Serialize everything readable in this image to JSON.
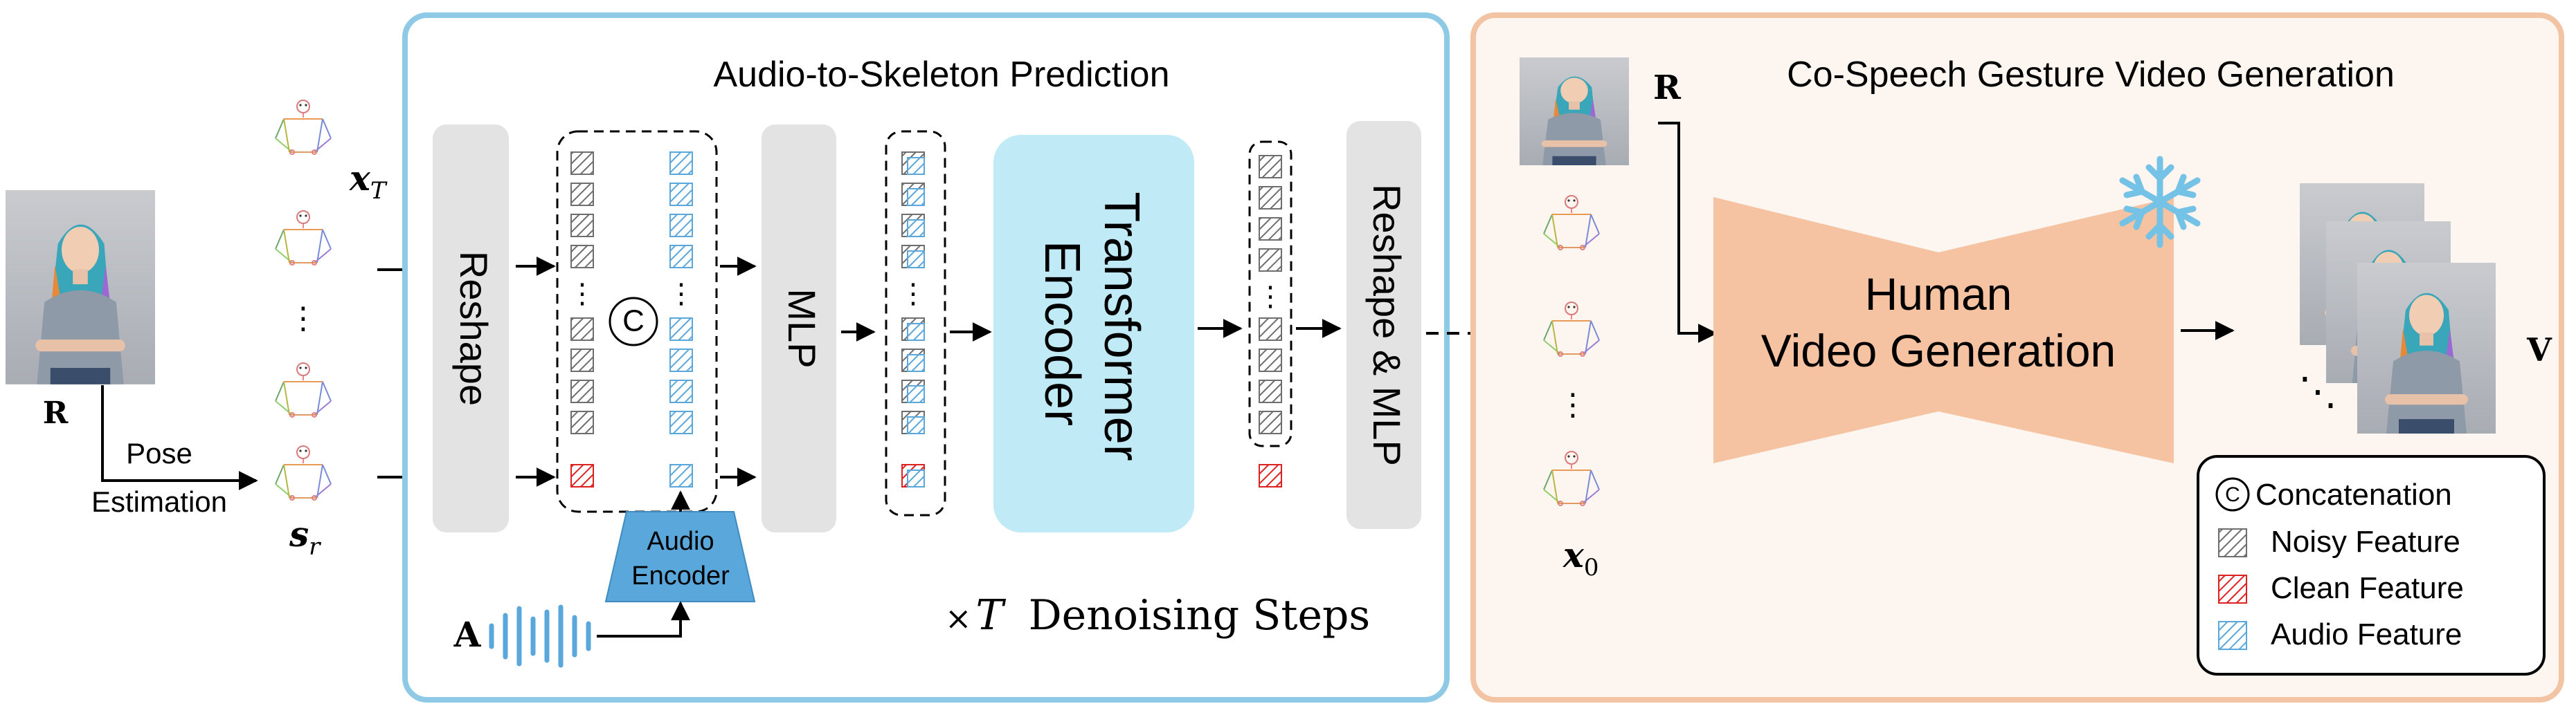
{
  "input": {
    "ref_label": "R",
    "pose_step_line1": "Pose",
    "pose_step_line2": "Estimation"
  },
  "skeleton": {
    "xT_main": "x",
    "xT_sub": "T",
    "sr_main": "s",
    "sr_sub": "r",
    "dots": "⋮",
    "x0_main": "x",
    "x0_sub": "0"
  },
  "a2s": {
    "title": "Audio-to-Skeleton Prediction",
    "reshape": "Reshape",
    "concat_symbol": "C",
    "mlp": "MLP",
    "transformer_line1": "Transformer",
    "transformer_line2": "Encoder",
    "reshape_mlp": "Reshape & MLP",
    "audio_enc_line1": "Audio",
    "audio_enc_line2": "Encoder",
    "audio_label": "A",
    "times_symbol": "×",
    "times_var": "T",
    "steps_text": "Denoising Steps"
  },
  "vg": {
    "title": "Co-Speech Gesture Video Generation",
    "ref_label": "R",
    "human_line1": "Human",
    "human_line2": "Video Generation",
    "output_label": "V",
    "output_dots": "⋱"
  },
  "legend": {
    "concat_symbol": "C",
    "concat": "Concatenation",
    "noisy": "Noisy Feature",
    "clean": "Clean Feature",
    "audio": "Audio Feature"
  },
  "colors": {
    "a2s_border": "#8ecae6",
    "vg_border": "#f2c4a3",
    "vg_bg": "#fdf6f0",
    "gray_block": "#e3e3e3",
    "transformer": "#bfeaf6",
    "human_gen": "#f6c3a2",
    "noisy": "#6e6e6e",
    "clean": "#dd2222",
    "audio": "#5aa7dc"
  }
}
